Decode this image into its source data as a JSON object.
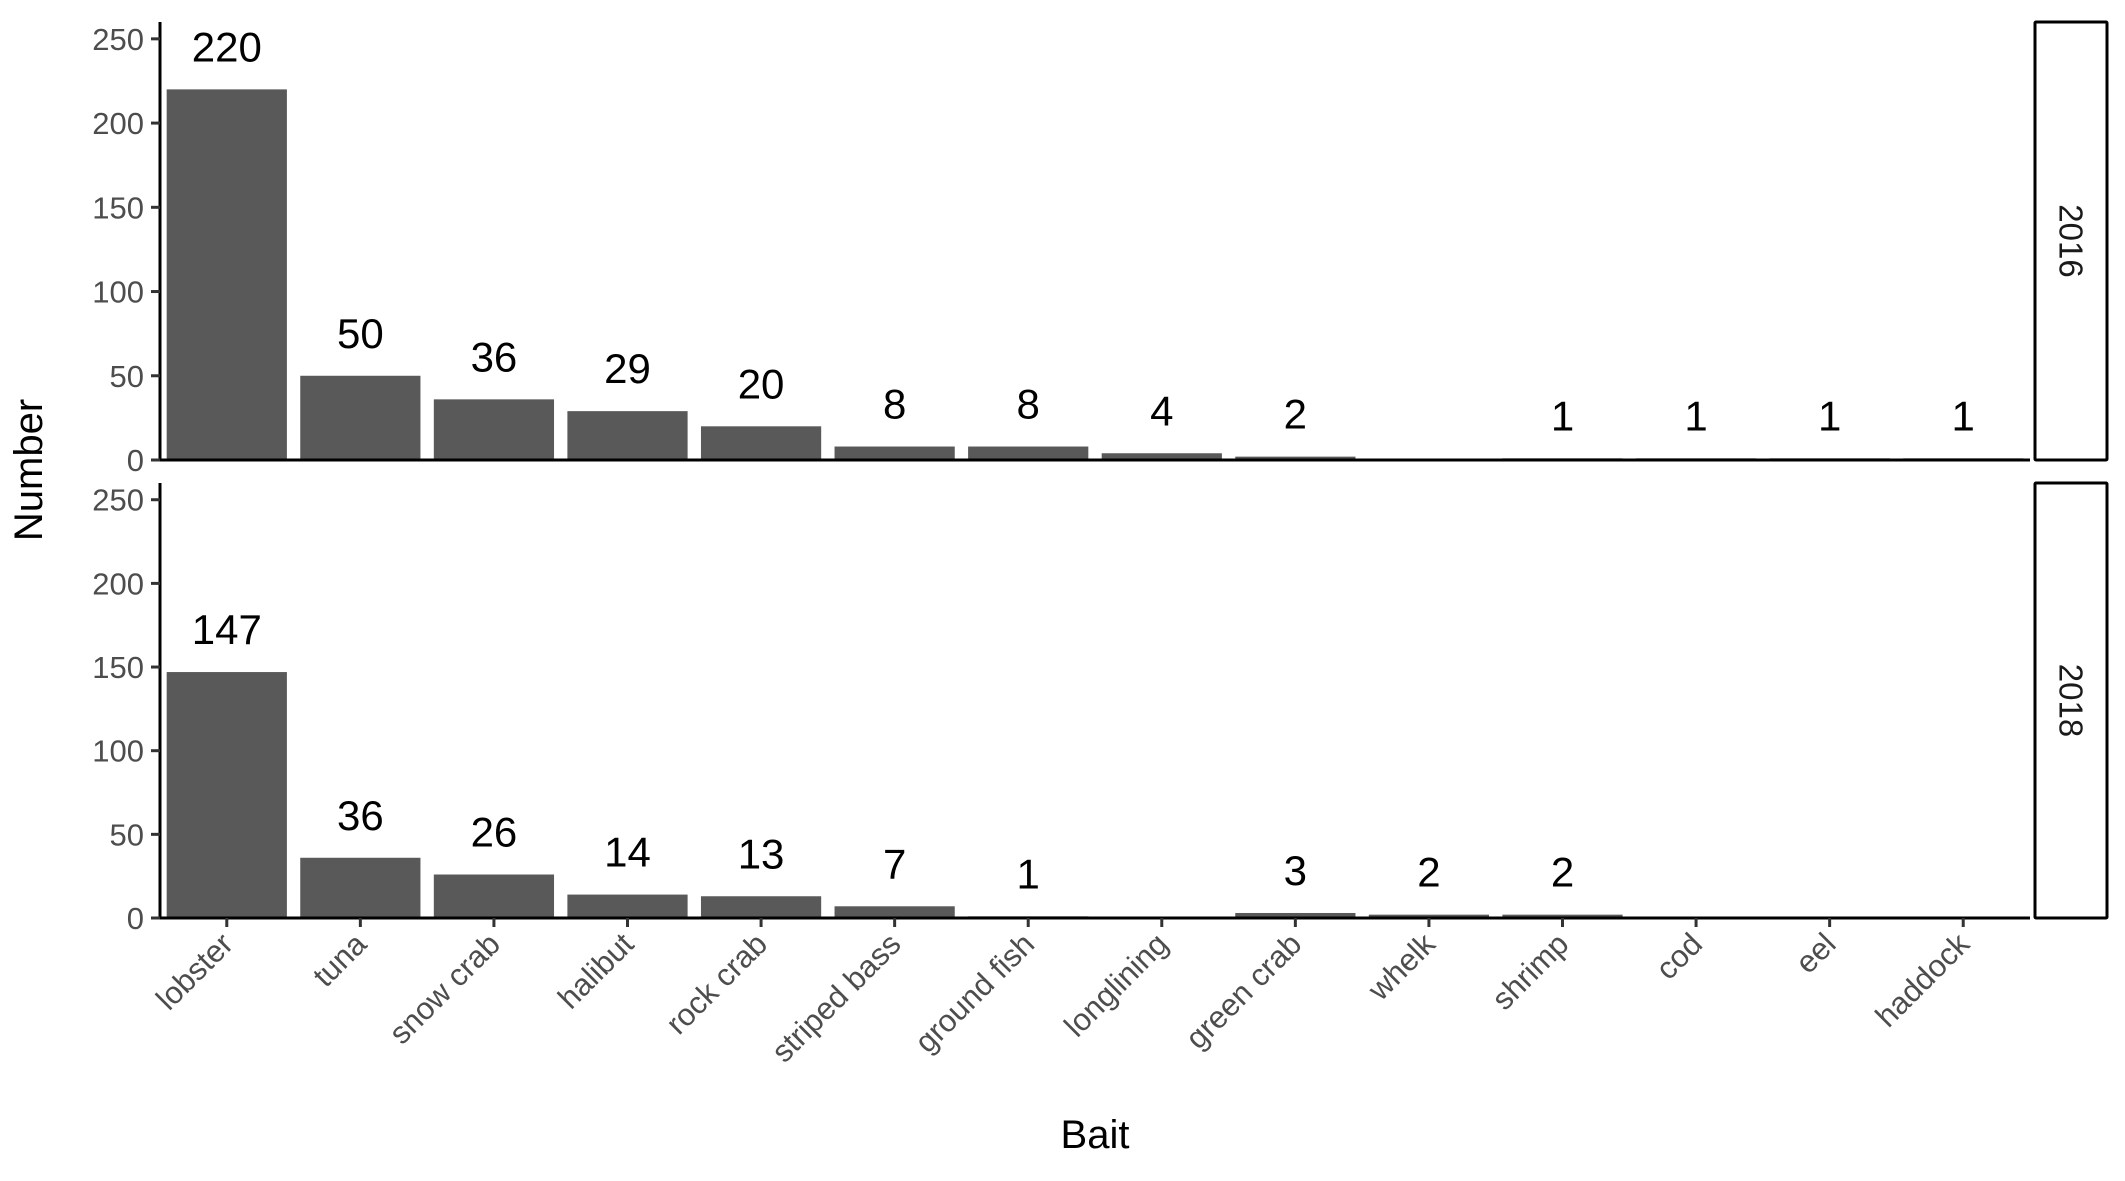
{
  "chart_data": {
    "type": "bar",
    "facets": "rows",
    "xlabel": "Bait",
    "ylabel": "Number",
    "ylim": [
      0,
      260
    ],
    "yticks": [
      0,
      50,
      100,
      150,
      200,
      250
    ],
    "categories": [
      "lobster",
      "tuna",
      "snow crab",
      "halibut",
      "rock crab",
      "striped bass",
      "ground fish",
      "longlining",
      "green crab",
      "whelk",
      "shrimp",
      "cod",
      "eel",
      "haddock"
    ],
    "panels": [
      {
        "strip": "2016",
        "values": [
          220,
          50,
          36,
          29,
          20,
          8,
          8,
          4,
          2,
          null,
          1,
          1,
          1,
          1
        ]
      },
      {
        "strip": "2018",
        "values": [
          147,
          36,
          26,
          14,
          13,
          7,
          1,
          null,
          3,
          2,
          2,
          null,
          null,
          null
        ]
      }
    ],
    "bar_color": "#595959",
    "grid": false
  }
}
